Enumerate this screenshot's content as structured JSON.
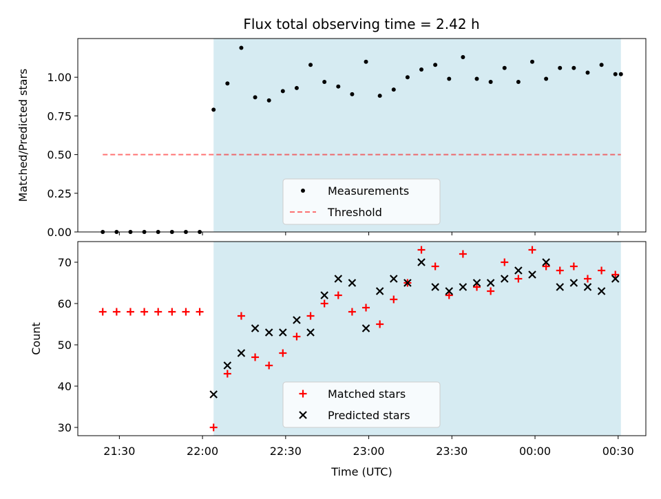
{
  "title": "Flux total observing time = 2.42 h",
  "colors": {
    "shade": "#add8e6",
    "threshold": "#ff0000",
    "matched": "#ff0000",
    "predicted": "#000000",
    "measurement": "#000000"
  },
  "chart_data": [
    {
      "type": "scatter",
      "ylabel": "Matched/Predicted stars",
      "ylim": [
        0,
        1.25
      ],
      "yticks": [
        "0.00",
        "0.25",
        "0.50",
        "0.75",
        "1.00"
      ],
      "xlim_minutes": [
        1275,
        1480
      ],
      "shaded_region_minutes": [
        1324,
        1471
      ],
      "threshold": {
        "value": 0.5,
        "from_minutes": 1284,
        "to_minutes": 1471
      },
      "legend": {
        "placement": "bottom-center",
        "entries": [
          "Measurements",
          "Threshold"
        ]
      },
      "series": [
        {
          "name": "Measurements",
          "marker": "dot",
          "x_minutes": [
            1284,
            1289,
            1294,
            1299,
            1304,
            1309,
            1314,
            1319,
            1324,
            1329,
            1334,
            1339,
            1344,
            1349,
            1354,
            1359,
            1364,
            1369,
            1374,
            1379,
            1384,
            1389,
            1394,
            1399,
            1404,
            1409,
            1414,
            1419,
            1424,
            1429,
            1434,
            1439,
            1444,
            1449,
            1454,
            1459,
            1464,
            1469,
            1471
          ],
          "y": [
            0,
            0,
            0,
            0,
            0,
            0,
            0,
            0,
            0.79,
            0.96,
            1.19,
            0.87,
            0.85,
            0.91,
            0.93,
            1.08,
            0.97,
            0.94,
            0.89,
            1.1,
            0.88,
            0.92,
            1.0,
            1.05,
            1.08,
            0.99,
            1.13,
            0.99,
            0.97,
            1.06,
            0.97,
            1.1,
            0.99,
            1.06,
            1.06,
            1.03,
            1.08,
            1.02,
            1.02
          ]
        }
      ]
    },
    {
      "type": "scatter",
      "xlabel": "Time (UTC)",
      "ylabel": "Count",
      "ylim": [
        28,
        75
      ],
      "yticks": [
        "30",
        "40",
        "50",
        "60",
        "70"
      ],
      "xticks": [
        "21:30",
        "22:00",
        "22:30",
        "23:00",
        "23:30",
        "00:00",
        "00:30"
      ],
      "xticks_minutes": [
        1290,
        1320,
        1350,
        1380,
        1410,
        1440,
        1470
      ],
      "xlim_minutes": [
        1275,
        1480
      ],
      "shaded_region_minutes": [
        1324,
        1471
      ],
      "legend": {
        "placement": "bottom-center",
        "entries": [
          "Matched stars",
          "Predicted stars"
        ]
      },
      "series": [
        {
          "name": "Matched stars",
          "marker": "plus",
          "x_minutes": [
            1284,
            1289,
            1294,
            1299,
            1304,
            1309,
            1314,
            1319,
            1324,
            1329,
            1334,
            1339,
            1344,
            1349,
            1354,
            1359,
            1364,
            1369,
            1374,
            1379,
            1384,
            1389,
            1394,
            1399,
            1404,
            1409,
            1414,
            1419,
            1424,
            1429,
            1434,
            1439,
            1444,
            1449,
            1454,
            1459,
            1464,
            1469
          ],
          "y": [
            58,
            58,
            58,
            58,
            58,
            58,
            58,
            58,
            30,
            43,
            57,
            47,
            45,
            48,
            52,
            57,
            60,
            62,
            58,
            59,
            55,
            61,
            65,
            73,
            69,
            62,
            72,
            64,
            63,
            70,
            66,
            73,
            69,
            68,
            69,
            66,
            68,
            67
          ]
        },
        {
          "name": "Predicted stars",
          "marker": "x",
          "x_minutes": [
            1324,
            1329,
            1334,
            1339,
            1344,
            1349,
            1354,
            1359,
            1364,
            1369,
            1374,
            1379,
            1384,
            1389,
            1394,
            1399,
            1404,
            1409,
            1414,
            1419,
            1424,
            1429,
            1434,
            1439,
            1444,
            1449,
            1454,
            1459,
            1464,
            1469
          ],
          "y": [
            38,
            45,
            48,
            54,
            53,
            53,
            56,
            53,
            62,
            66,
            65,
            54,
            63,
            66,
            65,
            70,
            64,
            63,
            64,
            65,
            65,
            66,
            68,
            67,
            70,
            64,
            65,
            64,
            63,
            66
          ]
        }
      ]
    }
  ]
}
